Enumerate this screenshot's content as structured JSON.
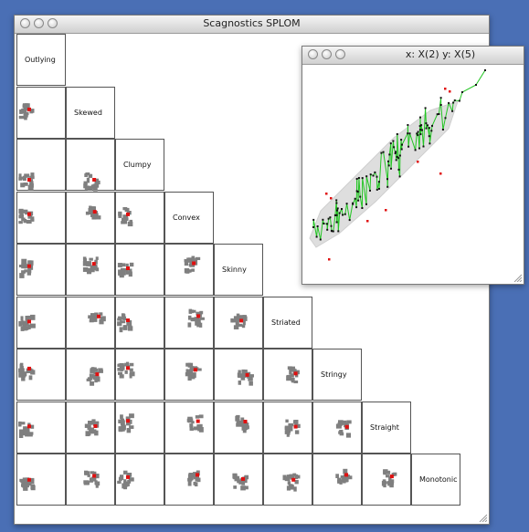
{
  "main_window": {
    "title": "Scagnostics SPLOM"
  },
  "diagonal_labels": [
    "Outlying",
    "Skewed",
    "Clumpy",
    "Convex",
    "Skinny",
    "Striated",
    "Stringy",
    "Straight",
    "Monotonic"
  ],
  "zoom_window": {
    "title": "x: X(2) y: X(5)"
  },
  "colors": {
    "desktop": "#4a6fb5",
    "cluster": "#7f7f7f",
    "highlight": "#e01010",
    "point": "#111111",
    "spanning_tree": "#22c522",
    "hull": "#dedede"
  },
  "icons": {
    "close": "close-light-icon",
    "minimize": "minimize-light-icon",
    "zoom": "zoom-light-icon",
    "resize": "resize-grip-icon"
  }
}
